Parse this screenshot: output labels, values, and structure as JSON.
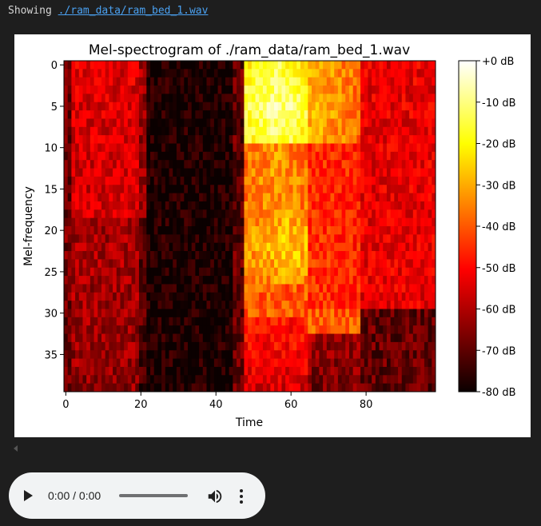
{
  "output": {
    "prefix": "Showing ",
    "file_link": "./ram_data/ram_bed_1.wav"
  },
  "chart_data": {
    "type": "heatmap",
    "title": "Mel-spectrogram of ./ram_data/ram_bed_1.wav",
    "xlabel": "Time",
    "ylabel": "Mel-frequency",
    "x_ticks": [
      "0",
      "20",
      "40",
      "60",
      "80"
    ],
    "y_ticks": [
      "0",
      "5",
      "10",
      "15",
      "20",
      "25",
      "30",
      "35"
    ],
    "xlim": [
      -0.5,
      98.5
    ],
    "ylim": [
      39.5,
      -0.5
    ],
    "grid": false,
    "colormap": "hot",
    "rows": 40,
    "cols": 99,
    "colorbar": {
      "range_db": [
        -80,
        0
      ],
      "tick_labels": [
        "+0 dB",
        "-10 dB",
        "-20 dB",
        "-30 dB",
        "-40 dB",
        "-50 dB",
        "-60 dB",
        "-70 dB",
        "-80 dB"
      ],
      "tick_values": [
        0,
        -10,
        -20,
        -30,
        -40,
        -50,
        -60,
        -70,
        -80
      ]
    }
  },
  "audio": {
    "time": "0:00 / 0:00",
    "progress": 0,
    "icons": [
      "play-icon",
      "volume-icon",
      "more-vert-icon"
    ]
  }
}
